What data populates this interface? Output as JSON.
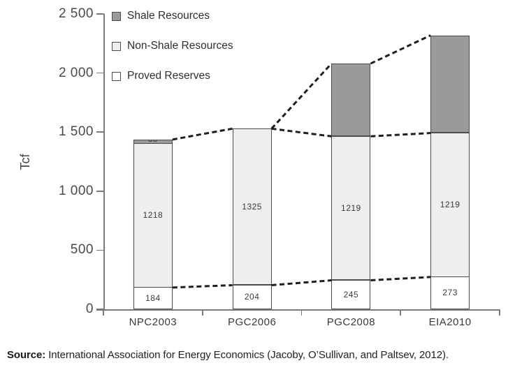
{
  "chart_data": {
    "type": "stacked-bar",
    "title": "",
    "ylabel": "Tcf",
    "xlabel": "",
    "ylim": [
      0,
      2500
    ],
    "ytick_step": 500,
    "ytick_labels": [
      "0",
      "500",
      "1 000",
      "1 500",
      "2 000",
      "2 500"
    ],
    "grid": false,
    "legend_position": "top-left-inside",
    "categories": [
      "NPC2003",
      "PGC2006",
      "PGC2008",
      "EIA2010"
    ],
    "series": [
      {
        "name": "Proved Reserves",
        "color": "#ffffff",
        "values": [
          184,
          204,
          245,
          273
        ],
        "labels": [
          "184",
          "204",
          "245",
          "273"
        ]
      },
      {
        "name": "Non-Shale Resources",
        "color": "#eeeeee",
        "values": [
          1218,
          1325,
          1219,
          1219
        ],
        "labels": [
          "1218",
          "1325",
          "1219",
          "1219"
        ]
      },
      {
        "name": "Shale Resources",
        "color": "#9a9a9a",
        "values": [
          35,
          0,
          616,
          827
        ],
        "labels": [
          "35",
          "",
          "",
          ""
        ]
      }
    ],
    "totals": [
      1437,
      1529,
      2080,
      2319
    ],
    "annotations": {
      "dashed_connectors": [
        "total-top between adjacent bars",
        "proved-reserves top between adjacent bars",
        "non-shale top between PGC2006, PGC2008 and EIA2010"
      ]
    }
  },
  "colors": {
    "axis": "#7a7a7a",
    "bar_border": "#4d4d4d",
    "dash_line": "#1f1f1f",
    "shale_fill": "#9a9a9a",
    "nonshale_fill": "#eeeeee",
    "proved_fill": "#ffffff"
  },
  "source": {
    "label": "Source:",
    "text": " International Association for Energy Economics (Jacoby, O’Sullivan, and Paltsev, 2012)."
  }
}
